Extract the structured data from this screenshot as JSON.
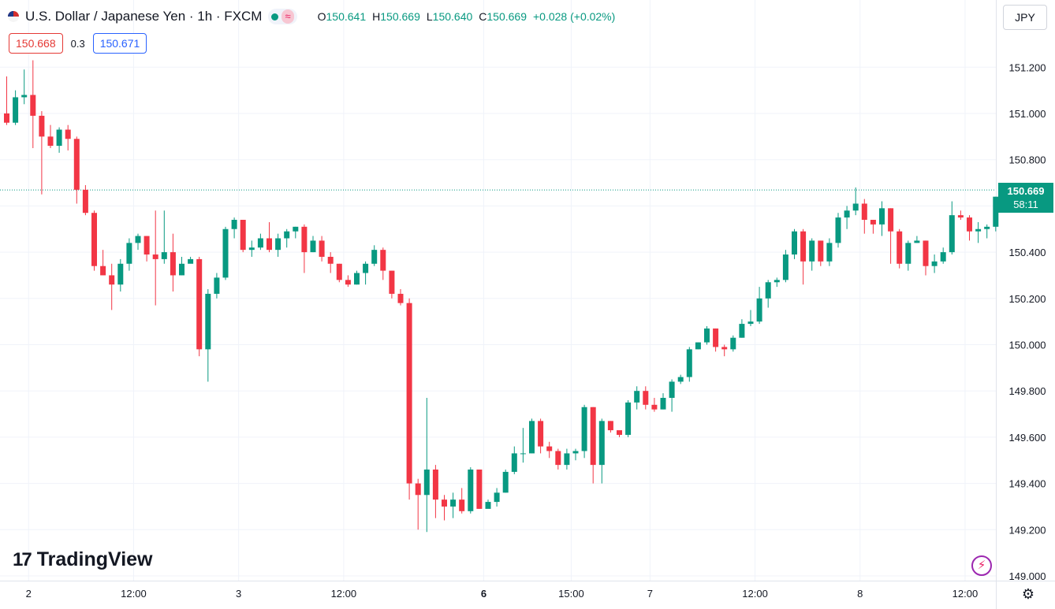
{
  "header": {
    "symbol": "U.S. Dollar / Japanese Yen · 1h · FXCM",
    "wave_glyph": "≈",
    "flag_icon": "us-flag-icon",
    "ohlc": {
      "o_label": "O",
      "o_value": "150.641",
      "h_label": "H",
      "h_value": "150.669",
      "l_label": "L",
      "l_value": "150.640",
      "c_label": "C",
      "c_value": "150.669",
      "change": "+0.028 (+0.02%)"
    }
  },
  "trade": {
    "bid": "150.668",
    "spread": "0.3",
    "ask": "150.671"
  },
  "currency_button": "JPY",
  "last_price": {
    "price": "150.669",
    "countdown": "58:11"
  },
  "branding": {
    "logo_mark": "17",
    "logo_text": "TradingView"
  },
  "icons": {
    "bolt": "⚡",
    "gear": "⚙"
  },
  "colors": {
    "up": "#089981",
    "down": "#f23645",
    "grid": "#f0f3fa",
    "text": "#131722"
  },
  "chart_data": {
    "type": "candlestick",
    "title": "",
    "xlabel": "",
    "ylabel": "",
    "ylim": [
      149.0,
      151.3
    ],
    "y_ticks": [
      "151.200",
      "151.000",
      "150.800",
      "150.600",
      "150.400",
      "150.200",
      "150.000",
      "149.800",
      "149.600",
      "149.400",
      "149.200",
      "149.000"
    ],
    "y_tick_values": [
      151.2,
      151.0,
      150.8,
      150.6,
      150.4,
      150.2,
      150.0,
      149.8,
      149.6,
      149.4,
      149.2,
      149.0
    ],
    "x_ticks": [
      {
        "label": "2",
        "bar": 2.5,
        "bold": false
      },
      {
        "label": "12:00",
        "bar": 14.5,
        "bold": false
      },
      {
        "label": "3",
        "bar": 26.5,
        "bold": false
      },
      {
        "label": "12:00",
        "bar": 38.5,
        "bold": false
      },
      {
        "label": "6",
        "bar": 54.5,
        "bold": true
      },
      {
        "label": "15:00",
        "bar": 64.5,
        "bold": false
      },
      {
        "label": "7",
        "bar": 73.5,
        "bold": false
      },
      {
        "label": "12:00",
        "bar": 85.5,
        "bold": false
      },
      {
        "label": "8",
        "bar": 97.5,
        "bold": false
      },
      {
        "label": "12:00",
        "bar": 109.5,
        "bold": false
      }
    ],
    "last_price_line": 150.669,
    "candles": [
      [
        151.0,
        150.96,
        151.16,
        150.95
      ],
      [
        150.96,
        151.07,
        151.1,
        150.95
      ],
      [
        151.07,
        151.08,
        151.19,
        151.04
      ],
      [
        151.08,
        150.99,
        151.23,
        150.85
      ],
      [
        150.99,
        150.9,
        151.01,
        150.65
      ],
      [
        150.9,
        150.86,
        150.95,
        150.85
      ],
      [
        150.86,
        150.93,
        150.94,
        150.83
      ],
      [
        150.93,
        150.89,
        150.95,
        150.84
      ],
      [
        150.89,
        150.67,
        150.9,
        150.61
      ],
      [
        150.67,
        150.57,
        150.69,
        150.56
      ],
      [
        150.57,
        150.34,
        150.58,
        150.32
      ],
      [
        150.34,
        150.3,
        150.41,
        150.3
      ],
      [
        150.3,
        150.26,
        150.35,
        150.15
      ],
      [
        150.26,
        150.35,
        150.37,
        150.23
      ],
      [
        150.35,
        150.44,
        150.46,
        150.32
      ],
      [
        150.44,
        150.47,
        150.48,
        150.41
      ],
      [
        150.47,
        150.39,
        150.47,
        150.36
      ],
      [
        150.39,
        150.37,
        150.58,
        150.17
      ],
      [
        150.37,
        150.4,
        150.58,
        150.35
      ],
      [
        150.4,
        150.3,
        150.48,
        150.23
      ],
      [
        150.3,
        150.35,
        150.38,
        150.3
      ],
      [
        150.35,
        150.37,
        150.38,
        150.36
      ],
      [
        150.37,
        149.98,
        150.38,
        149.95
      ],
      [
        149.98,
        150.22,
        150.24,
        149.84
      ],
      [
        150.22,
        150.29,
        150.31,
        150.2
      ],
      [
        150.29,
        150.5,
        150.51,
        150.28
      ],
      [
        150.5,
        150.54,
        150.55,
        150.46
      ],
      [
        150.54,
        150.41,
        150.54,
        150.4
      ],
      [
        150.41,
        150.42,
        150.45,
        150.38
      ],
      [
        150.42,
        150.46,
        150.48,
        150.41
      ],
      [
        150.46,
        150.41,
        150.53,
        150.4
      ],
      [
        150.41,
        150.46,
        150.48,
        150.38
      ],
      [
        150.46,
        150.49,
        150.5,
        150.42
      ],
      [
        150.49,
        150.51,
        150.51,
        150.46
      ],
      [
        150.51,
        150.4,
        150.52,
        150.31
      ],
      [
        150.4,
        150.45,
        150.47,
        150.4
      ],
      [
        150.45,
        150.38,
        150.47,
        150.36
      ],
      [
        150.38,
        150.35,
        150.4,
        150.31
      ],
      [
        150.35,
        150.28,
        150.35,
        150.27
      ],
      [
        150.28,
        150.26,
        150.3,
        150.25
      ],
      [
        150.26,
        150.31,
        150.32,
        150.26
      ],
      [
        150.31,
        150.35,
        150.36,
        150.26
      ],
      [
        150.35,
        150.41,
        150.43,
        150.34
      ],
      [
        150.41,
        150.32,
        150.42,
        150.28
      ],
      [
        150.32,
        150.22,
        150.32,
        150.2
      ],
      [
        150.22,
        150.18,
        150.24,
        150.17
      ],
      [
        150.18,
        149.4,
        150.2,
        149.33
      ],
      [
        149.4,
        149.35,
        149.42,
        149.2
      ],
      [
        149.35,
        149.46,
        149.77,
        149.19
      ],
      [
        149.46,
        149.33,
        149.48,
        149.25
      ],
      [
        149.33,
        149.3,
        149.35,
        149.24
      ],
      [
        149.3,
        149.33,
        149.36,
        149.25
      ],
      [
        149.33,
        149.28,
        149.38,
        149.27
      ],
      [
        149.28,
        149.46,
        149.47,
        149.27
      ],
      [
        149.46,
        149.29,
        149.46,
        149.29
      ],
      [
        149.29,
        149.32,
        149.33,
        149.31
      ],
      [
        149.32,
        149.36,
        149.38,
        149.3
      ],
      [
        149.36,
        149.45,
        149.46,
        149.36
      ],
      [
        149.45,
        149.53,
        149.56,
        149.44
      ],
      [
        149.53,
        149.53,
        149.64,
        149.49
      ],
      [
        149.53,
        149.67,
        149.68,
        149.53
      ],
      [
        149.67,
        149.56,
        149.68,
        149.53
      ],
      [
        149.56,
        149.54,
        149.58,
        149.51
      ],
      [
        149.54,
        149.48,
        149.55,
        149.46
      ],
      [
        149.48,
        149.53,
        149.55,
        149.46
      ],
      [
        149.53,
        149.54,
        149.55,
        149.5
      ],
      [
        149.54,
        149.73,
        149.74,
        149.51
      ],
      [
        149.73,
        149.48,
        149.73,
        149.4
      ],
      [
        149.48,
        149.67,
        149.68,
        149.4
      ],
      [
        149.67,
        149.63,
        149.67,
        149.62
      ],
      [
        149.63,
        149.61,
        149.62,
        149.6
      ],
      [
        149.61,
        149.75,
        149.76,
        149.6
      ],
      [
        149.75,
        149.8,
        149.82,
        149.72
      ],
      [
        149.8,
        149.74,
        149.82,
        149.72
      ],
      [
        149.74,
        149.72,
        149.77,
        149.71
      ],
      [
        149.72,
        149.77,
        149.79,
        149.72
      ],
      [
        149.77,
        149.84,
        149.85,
        149.71
      ],
      [
        149.84,
        149.86,
        149.87,
        149.83
      ],
      [
        149.86,
        149.98,
        149.99,
        149.84
      ],
      [
        149.98,
        150.01,
        150.01,
        149.98
      ],
      [
        150.01,
        150.07,
        150.08,
        150.0
      ],
      [
        150.07,
        149.99,
        150.07,
        149.97
      ],
      [
        149.99,
        149.98,
        150.0,
        149.95
      ],
      [
        149.98,
        150.03,
        150.04,
        149.97
      ],
      [
        150.03,
        150.09,
        150.11,
        150.03
      ],
      [
        150.09,
        150.1,
        150.15,
        150.08
      ],
      [
        150.1,
        150.2,
        150.25,
        150.09
      ],
      [
        150.2,
        150.27,
        150.28,
        150.16
      ],
      [
        150.27,
        150.28,
        150.29,
        150.25
      ],
      [
        150.28,
        150.39,
        150.41,
        150.27
      ],
      [
        150.39,
        150.49,
        150.5,
        150.37
      ],
      [
        150.49,
        150.36,
        150.5,
        150.26
      ],
      [
        150.36,
        150.45,
        150.46,
        150.32
      ],
      [
        150.45,
        150.36,
        150.45,
        150.34
      ],
      [
        150.36,
        150.44,
        150.46,
        150.34
      ],
      [
        150.44,
        150.55,
        150.57,
        150.42
      ],
      [
        150.55,
        150.58,
        150.6,
        150.5
      ],
      [
        150.58,
        150.61,
        150.68,
        150.56
      ],
      [
        150.61,
        150.54,
        150.63,
        150.48
      ],
      [
        150.54,
        150.52,
        150.54,
        150.48
      ],
      [
        150.52,
        150.59,
        150.62,
        150.47
      ],
      [
        150.59,
        150.49,
        150.59,
        150.35
      ],
      [
        150.49,
        150.35,
        150.5,
        150.33
      ],
      [
        150.35,
        150.44,
        150.45,
        150.32
      ],
      [
        150.44,
        150.45,
        150.47,
        150.44
      ],
      [
        150.45,
        150.34,
        150.45,
        150.3
      ],
      [
        150.34,
        150.36,
        150.39,
        150.31
      ],
      [
        150.36,
        150.4,
        150.42,
        150.35
      ],
      [
        150.4,
        150.56,
        150.62,
        150.39
      ],
      [
        150.56,
        150.55,
        150.58,
        150.54
      ],
      [
        150.55,
        150.49,
        150.56,
        150.45
      ],
      [
        150.49,
        150.5,
        150.53,
        150.44
      ],
      [
        150.5,
        150.51,
        150.52,
        150.46
      ],
      [
        150.51,
        150.64,
        150.64,
        150.49
      ],
      [
        150.641,
        150.669,
        150.669,
        150.64
      ]
    ]
  }
}
